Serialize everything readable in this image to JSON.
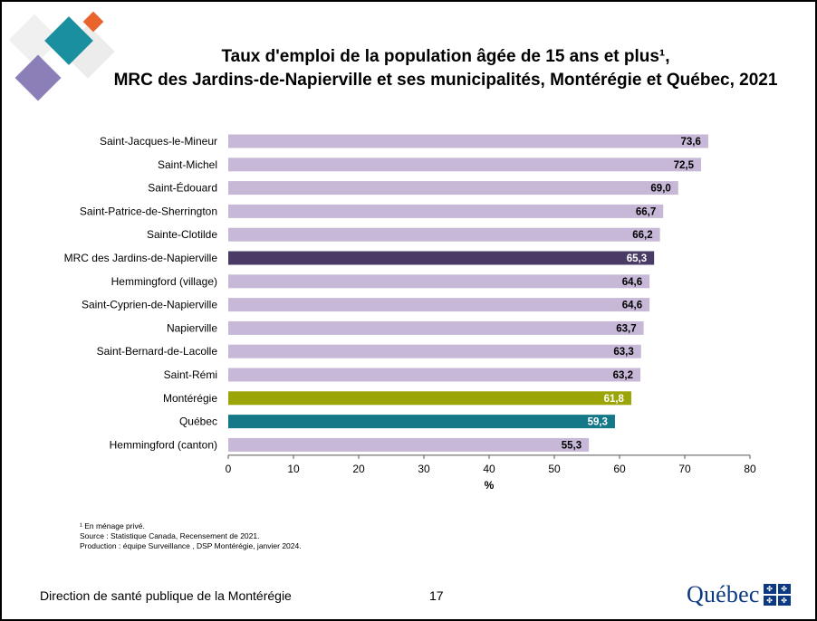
{
  "title": {
    "line1": "Taux d'emploi de la population âgée de 15 ans et plus¹,",
    "line2": "MRC des Jardins-de-Napierville et ses municipalités, Montérégie et Québec, 2021"
  },
  "chart_data": {
    "type": "bar",
    "orientation": "horizontal",
    "categories": [
      "Saint-Jacques-le-Mineur",
      "Saint-Michel",
      "Saint-Édouard",
      "Saint-Patrice-de-Sherrington",
      "Sainte-Clotilde",
      "MRC des Jardins-de-Napierville",
      "Hemmingford (village)",
      "Saint-Cyprien-de-Napierville",
      "Napierville",
      "Saint-Bernard-de-Lacolle",
      "Saint-Rémi",
      "Montérégie",
      "Québec",
      "Hemmingford (canton)"
    ],
    "values": [
      73.6,
      72.5,
      69.0,
      66.7,
      66.2,
      65.3,
      64.6,
      64.6,
      63.7,
      63.3,
      63.2,
      61.8,
      59.3,
      55.3
    ],
    "value_labels": [
      "73,6",
      "72,5",
      "69,0",
      "66,7",
      "66,2",
      "65,3",
      "64,6",
      "64,6",
      "63,7",
      "63,3",
      "63,2",
      "61,8",
      "59,3",
      "55,3"
    ],
    "xlabel": "%",
    "xlim": [
      0,
      80
    ],
    "xticks": [
      0,
      10,
      20,
      30,
      40,
      50,
      60,
      70,
      80
    ],
    "grid": false,
    "colors": {
      "default": "#c7b8d8",
      "MRC des Jardins-de-Napierville": "#4a3a66",
      "Montérégie": "#9ba507",
      "Québec": "#157888"
    },
    "label_colors": {
      "default": "#000000",
      "highlight": "#ffffff"
    }
  },
  "notes": {
    "footnote": "¹ En ménage privé.",
    "source": "Source : Statistique Canada, Recensement de 2021.",
    "production": "Production : équipe Surveillance , DSP Montérégie, janvier 2024."
  },
  "footer": {
    "organization": "Direction de santé publique de la Montérégie",
    "page_number": "17",
    "logo_text": "Québec",
    "logo_flag": "fleur-de-lis-flag-icon"
  },
  "decoration": {
    "colors": [
      "#1a8fa0",
      "#e8642c",
      "#8c7fb8",
      "#d9d9d9"
    ]
  }
}
